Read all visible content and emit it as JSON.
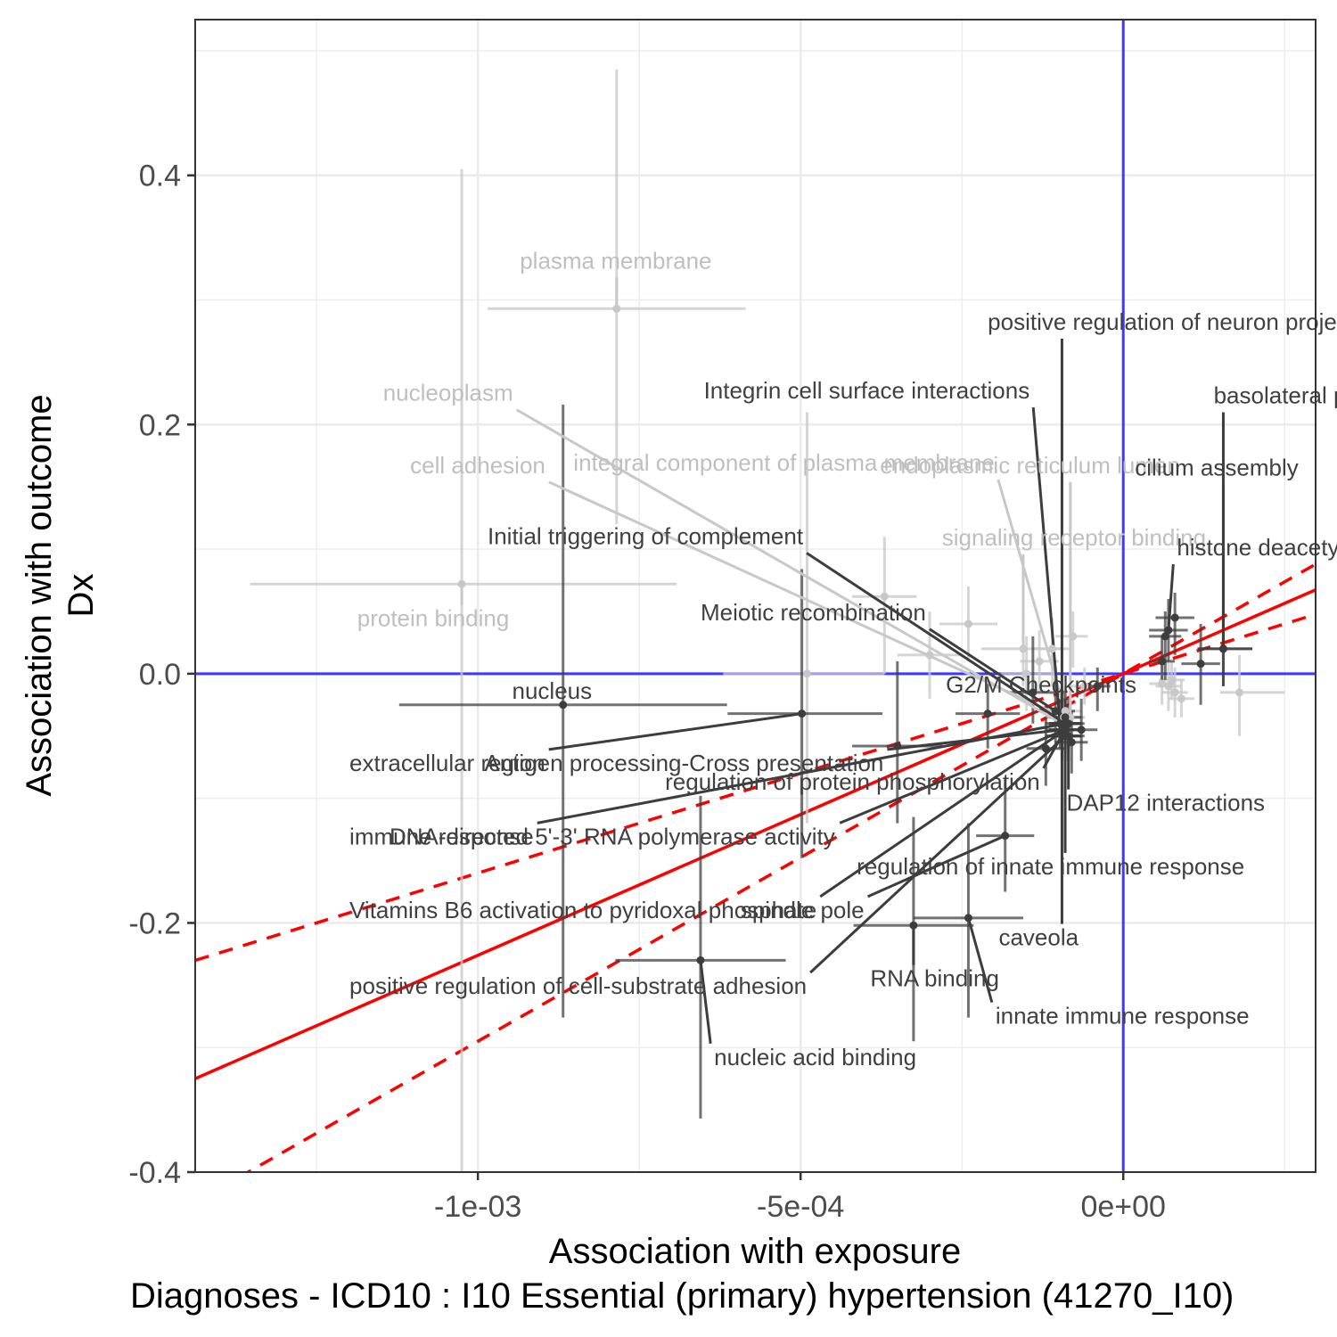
{
  "chart_data": {
    "type": "scatter",
    "title": "",
    "xlabel": "Association with exposure",
    "xlabel2": "Diagnoses - ICD10 : I10 Essential (primary) hypertension (41270_I10)",
    "ylabel": "Association with outcome",
    "ylabel2": "Dx",
    "xlim": [
      -0.001438,
      0.000298
    ],
    "ylim": [
      -0.4,
      0.525
    ],
    "x_ticks": [
      -0.001,
      -0.0005,
      0
    ],
    "x_tick_labels": [
      "-1e-03",
      "-5e-04",
      "0e+00"
    ],
    "y_ticks": [
      -0.4,
      -0.2,
      0,
      0.2,
      0.4
    ],
    "y_tick_labels": [
      "-0.4",
      "-0.2",
      "0.0",
      "0.2",
      "0.4"
    ],
    "grid": true,
    "reference_lines": {
      "x": 0,
      "y": 0,
      "color": "#3b3bff"
    },
    "fit": {
      "color": "#ff0000",
      "slope": 226,
      "intercept": 0.0,
      "ci_lower_slope": 295,
      "ci_upper_slope": 160
    },
    "colors": {
      "significant": "#3d3d3d",
      "not_significant": "#c8c8c8",
      "label_significant": "#404040",
      "label_not_significant": "#bfbfbf"
    },
    "points": [
      {
        "label": "plasma membrane",
        "x": -0.000785,
        "y": 0.293,
        "x_lo": -0.000985,
        "x_hi": -0.000585,
        "y_lo": 0.12,
        "y_hi": 0.485,
        "significant": false,
        "lx": -0.000935,
        "ly": 0.325
      },
      {
        "label": "nucleoplasm",
        "x": -9.5e-05,
        "y": -0.04,
        "x_lo": -0.00012,
        "x_hi": -7e-05,
        "y_lo": -0.06,
        "y_hi": -0.02,
        "significant": false,
        "lx": -0.001147,
        "ly": 0.219
      },
      {
        "label": "cell adhesion",
        "x": -9.2e-05,
        "y": -0.035,
        "x_lo": -0.00012,
        "x_hi": -6e-05,
        "y_lo": -0.055,
        "y_hi": -0.015,
        "significant": false,
        "lx": -0.001105,
        "ly": 0.161
      },
      {
        "label": "integral component of plasma membrane",
        "x": -9e-05,
        "y": -0.03,
        "x_lo": -0.000115,
        "x_hi": -6.5e-05,
        "y_lo": -0.05,
        "y_hi": -0.01,
        "significant": false,
        "lx": -0.000852,
        "ly": 0.163
      },
      {
        "label": "endoplasmic reticulum lumen",
        "x": -8.2e-05,
        "y": -0.035,
        "x_lo": -0.0001,
        "x_hi": -6e-05,
        "y_lo": -0.05,
        "y_hi": -0.02,
        "significant": false,
        "lx": -0.000377,
        "ly": 0.161
      },
      {
        "label": "signaling receptor binding",
        "x": -0.000155,
        "y": 0.02,
        "x_lo": -0.00022,
        "x_hi": -9e-05,
        "y_lo": -0.01,
        "y_hi": 0.05,
        "significant": false,
        "lx": -0.000281,
        "ly": 0.103
      },
      {
        "label": "protein binding",
        "x": -0.001025,
        "y": 0.072,
        "x_lo": -0.001353,
        "x_hi": -0.000692,
        "y_lo": -0.4,
        "y_hi": 0.405,
        "significant": false,
        "lx": -0.001187,
        "ly": 0.038
      },
      {
        "label": "positive regulation of neuron projection development",
        "x": -9.5e-05,
        "y": -0.05,
        "x_lo": -0.00012,
        "x_hi": -7e-05,
        "y_lo": -0.07,
        "y_hi": -0.03,
        "significant": true,
        "lx": -0.00021,
        "ly": 0.276
      },
      {
        "label": "Integrin cell surface interactions",
        "x": -9.8e-05,
        "y": -0.04,
        "x_lo": -0.00012,
        "x_hi": -7e-05,
        "y_lo": -0.06,
        "y_hi": -0.02,
        "significant": true,
        "lx": -0.00065,
        "ly": 0.221
      },
      {
        "label": "basolateral plasma membrane",
        "x": 0.000155,
        "y": 0.02,
        "x_lo": 0.000115,
        "x_hi": 0.0002,
        "y_lo": -0.01,
        "y_hi": 0.05,
        "significant": true,
        "lx": 0.00014,
        "ly": 0.217
      },
      {
        "label": "cilium assembly",
        "x": 0.000155,
        "y": 0.02,
        "x_lo": 0.000115,
        "x_hi": 0.0002,
        "y_lo": -0.01,
        "y_hi": 0.05,
        "significant": true,
        "lx": 1.8e-05,
        "ly": 0.159
      },
      {
        "label": "histone deacetylase binding",
        "x": 7e-05,
        "y": 0.035,
        "x_lo": 4e-05,
        "x_hi": 0.0001,
        "y_lo": 0.01,
        "y_hi": 0.06,
        "significant": true,
        "lx": 8.3e-05,
        "ly": 0.095
      },
      {
        "label": "Initial triggering of complement",
        "x": -9e-05,
        "y": -0.04,
        "x_lo": -0.000115,
        "x_hi": -6.5e-05,
        "y_lo": -0.06,
        "y_hi": -0.02,
        "significant": true,
        "lx": -0.000985,
        "ly": 0.104
      },
      {
        "label": "Meiotic recombination",
        "x": -9e-05,
        "y": -0.035,
        "x_lo": -0.000115,
        "x_hi": -6.5e-05,
        "y_lo": -0.055,
        "y_hi": -0.015,
        "significant": true,
        "lx": -0.000655,
        "ly": 0.043
      },
      {
        "label": "G2/M Checkpoints",
        "x": -9e-05,
        "y": -0.04,
        "x_lo": -0.000115,
        "x_hi": -6.5e-05,
        "y_lo": -0.06,
        "y_hi": -0.02,
        "significant": true,
        "lx": -0.000275,
        "ly": -0.015
      },
      {
        "label": "nucleus",
        "x": -0.000868,
        "y": -0.025,
        "x_lo": -0.001122,
        "x_hi": -0.000614,
        "y_lo": -0.276,
        "y_hi": 0.216,
        "significant": true,
        "lx": -0.000947,
        "ly": -0.02
      },
      {
        "label": "extracellular region",
        "x": -0.000498,
        "y": -0.032,
        "x_lo": -0.000613,
        "x_hi": -0.000373,
        "y_lo": -0.148,
        "y_hi": 0.084,
        "significant": true,
        "lx": -0.001199,
        "ly": -0.078
      },
      {
        "label": "Antigen processing-Cross presentation",
        "x": -9.5e-05,
        "y": -0.045,
        "x_lo": -0.00012,
        "x_hi": -7e-05,
        "y_lo": -0.065,
        "y_hi": -0.025,
        "significant": true,
        "lx": -0.00099,
        "ly": -0.078
      },
      {
        "label": "regulation of protein phosphorylation",
        "x": -8.5e-05,
        "y": -0.04,
        "x_lo": -0.00011,
        "x_hi": -6e-05,
        "y_lo": -0.06,
        "y_hi": -0.02,
        "significant": true,
        "lx": -0.00071,
        "ly": -0.093
      },
      {
        "label": "DAP12 interactions",
        "x": -8.5e-05,
        "y": -0.05,
        "x_lo": -0.00011,
        "x_hi": -6e-05,
        "y_lo": -0.07,
        "y_hi": -0.03,
        "significant": true,
        "lx": -8.8e-05,
        "ly": -0.11
      },
      {
        "label": "immune response",
        "x": -9e-05,
        "y": -0.04,
        "x_lo": -0.000115,
        "x_hi": -6.5e-05,
        "y_lo": -0.06,
        "y_hi": -0.02,
        "significant": true,
        "lx": -0.001199,
        "ly": -0.137
      },
      {
        "label": "DNA-directed 5'-3' RNA polymerase activity",
        "x": -9e-05,
        "y": -0.045,
        "x_lo": -0.000115,
        "x_hi": -6.5e-05,
        "y_lo": -0.065,
        "y_hi": -0.025,
        "significant": true,
        "lx": -0.001137,
        "ly": -0.137
      },
      {
        "label": "regulation of innate immune response",
        "x": -9e-05,
        "y": -0.05,
        "x_lo": -0.000115,
        "x_hi": -6.5e-05,
        "y_lo": -0.07,
        "y_hi": -0.03,
        "significant": true,
        "lx": -0.000413,
        "ly": -0.161
      },
      {
        "label": "Vitamins B6 activation to pyridoxal phosphate",
        "x": -9e-05,
        "y": -0.045,
        "x_lo": -0.000115,
        "x_hi": -6.5e-05,
        "y_lo": -0.065,
        "y_hi": -0.025,
        "significant": true,
        "lx": -0.001199,
        "ly": -0.196
      },
      {
        "label": "spindle pole",
        "x": -0.000183,
        "y": -0.13,
        "x_lo": -0.000228,
        "x_hi": -0.000138,
        "y_lo": -0.175,
        "y_hi": -0.085,
        "significant": true,
        "lx": -0.000593,
        "ly": -0.196
      },
      {
        "label": "caveola",
        "x": -9.5e-05,
        "y": -0.05,
        "x_lo": -0.00012,
        "x_hi": -7e-05,
        "y_lo": -0.07,
        "y_hi": -0.03,
        "significant": true,
        "lx": -0.000193,
        "ly": -0.218
      },
      {
        "label": "RNA binding",
        "x": -0.000325,
        "y": -0.202,
        "x_lo": -0.000418,
        "x_hi": -0.000232,
        "y_lo": -0.295,
        "y_hi": -0.115,
        "significant": true,
        "lx": -0.000392,
        "ly": -0.251
      },
      {
        "label": "positive regulation of cell-substrate adhesion",
        "x": -9e-05,
        "y": -0.05,
        "x_lo": -0.000115,
        "x_hi": -6.5e-05,
        "y_lo": -0.07,
        "y_hi": -0.03,
        "significant": true,
        "lx": -0.001199,
        "ly": -0.257
      },
      {
        "label": "innate immune response",
        "x": -0.00024,
        "y": -0.196,
        "x_lo": -0.000325,
        "x_hi": -0.000155,
        "y_lo": -0.276,
        "y_hi": -0.12,
        "significant": true,
        "lx": -0.000198,
        "ly": -0.281
      },
      {
        "label": "nucleic acid binding",
        "x": -0.000655,
        "y": -0.23,
        "x_lo": -0.000787,
        "x_hi": -0.000523,
        "y_lo": -0.357,
        "y_hi": -0.098,
        "significant": true,
        "lx": -0.000634,
        "ly": -0.314
      }
    ],
    "cluster_points": [
      {
        "x": -0.000105,
        "y": -0.03,
        "x_lo": -0.000135,
        "x_hi": -7.5e-05,
        "y_lo": -0.06,
        "y_hi": 0.005,
        "significant": true
      },
      {
        "x": -8e-05,
        "y": -0.055,
        "x_lo": -0.000105,
        "x_hi": -5.5e-05,
        "y_lo": -0.08,
        "y_hi": -0.03,
        "significant": true
      },
      {
        "x": -6.5e-05,
        "y": -0.045,
        "x_lo": -9e-05,
        "x_hi": -4e-05,
        "y_lo": -0.07,
        "y_hi": -0.02,
        "significant": true
      },
      {
        "x": -0.00012,
        "y": -0.06,
        "x_lo": -0.00015,
        "x_hi": -9e-05,
        "y_lo": -0.09,
        "y_hi": -0.035,
        "significant": true
      },
      {
        "x": -0.00014,
        "y": -0.015,
        "x_lo": -0.00018,
        "x_hi": -0.0001,
        "y_lo": -0.04,
        "y_hi": 0.03,
        "significant": true
      },
      {
        "x": -0.00021,
        "y": -0.032,
        "x_lo": -0.00026,
        "x_hi": -0.00016,
        "y_lo": -0.06,
        "y_hi": -0.005,
        "significant": true
      },
      {
        "x": -0.00035,
        "y": -0.058,
        "x_lo": -0.00042,
        "x_hi": -0.00028,
        "y_lo": -0.12,
        "y_hi": 0.01,
        "significant": true
      },
      {
        "x": -4e-05,
        "y": -0.01,
        "x_lo": -6e-05,
        "x_hi": -2e-05,
        "y_lo": -0.03,
        "y_hi": 0.005,
        "significant": true
      },
      {
        "x": 6.5e-05,
        "y": 0.03,
        "x_lo": 4e-05,
        "x_hi": 9e-05,
        "y_lo": -0.005,
        "y_hi": 0.05,
        "significant": true
      },
      {
        "x": 8e-05,
        "y": 0.045,
        "x_lo": 5e-05,
        "x_hi": 0.00011,
        "y_lo": 0.015,
        "y_hi": 0.065,
        "significant": true
      },
      {
        "x": 6e-05,
        "y": 0.01,
        "x_lo": 4e-05,
        "x_hi": 8e-05,
        "y_lo": -0.01,
        "y_hi": 0.03,
        "significant": true
      },
      {
        "x": 0.00012,
        "y": 0.008,
        "x_lo": 9e-05,
        "x_hi": 0.00015,
        "y_lo": -0.025,
        "y_hi": 0.04,
        "significant": true
      },
      {
        "x": 7e-05,
        "y": -0.01,
        "x_lo": 5e-05,
        "x_hi": 9e-05,
        "y_lo": -0.03,
        "y_hi": 0.01,
        "significant": false
      },
      {
        "x": 8e-05,
        "y": -0.015,
        "x_lo": 6e-05,
        "x_hi": 0.0001,
        "y_lo": -0.035,
        "y_hi": 0.005,
        "significant": false
      },
      {
        "x": 9e-05,
        "y": -0.02,
        "x_lo": 7e-05,
        "x_hi": 0.00011,
        "y_lo": -0.035,
        "y_hi": -0.005,
        "significant": false
      },
      {
        "x": 7.5e-05,
        "y": -0.005,
        "x_lo": 5.5e-05,
        "x_hi": 9.5e-05,
        "y_lo": -0.02,
        "y_hi": 0.01,
        "significant": false
      },
      {
        "x": 0.00018,
        "y": -0.015,
        "x_lo": 0.00015,
        "x_hi": 0.00025,
        "y_lo": -0.05,
        "y_hi": 0.015,
        "significant": false
      },
      {
        "x": 6e-05,
        "y": -0.008,
        "x_lo": 4e-05,
        "x_hi": 8e-05,
        "y_lo": -0.025,
        "y_hi": 0.01,
        "significant": false
      },
      {
        "x": -7.8e-05,
        "y": 0.03,
        "x_lo": -0.000105,
        "x_hi": -5.5e-05,
        "y_lo": 0.005,
        "y_hi": 0.05,
        "significant": false
      },
      {
        "x": -6e-05,
        "y": -0.01,
        "x_lo": -8e-05,
        "x_hi": -4e-05,
        "y_lo": -0.025,
        "y_hi": 0.005,
        "significant": false
      },
      {
        "x": -0.00024,
        "y": 0.04,
        "x_lo": -0.000285,
        "x_hi": -0.000195,
        "y_lo": 0.01,
        "y_hi": 0.07,
        "significant": false
      },
      {
        "x": -0.00037,
        "y": 0.062,
        "x_lo": -0.00042,
        "x_hi": -0.00032,
        "y_lo": 0.0,
        "y_hi": 0.11,
        "significant": false
      },
      {
        "x": -0.00013,
        "y": 0.01,
        "x_lo": -0.00016,
        "x_hi": -0.0001,
        "y_lo": -0.015,
        "y_hi": 0.035,
        "significant": false
      },
      {
        "x": -0.00011,
        "y": 0.02,
        "x_lo": -0.00014,
        "x_hi": -8e-05,
        "y_lo": -0.01,
        "y_hi": 0.045,
        "significant": false
      },
      {
        "x": -0.00015,
        "y": 0.0,
        "x_lo": -0.00019,
        "x_hi": -0.00011,
        "y_lo": -0.03,
        "y_hi": 0.03,
        "significant": false
      },
      {
        "x": -0.0003,
        "y": 0.015,
        "x_lo": -0.00035,
        "x_hi": -0.00025,
        "y_lo": -0.02,
        "y_hi": 0.05,
        "significant": false
      },
      {
        "x": -0.00049,
        "y": 0.0,
        "x_lo": -0.00062,
        "x_hi": -0.00037,
        "y_lo": -0.12,
        "y_hi": 0.21,
        "significant": false
      }
    ]
  }
}
